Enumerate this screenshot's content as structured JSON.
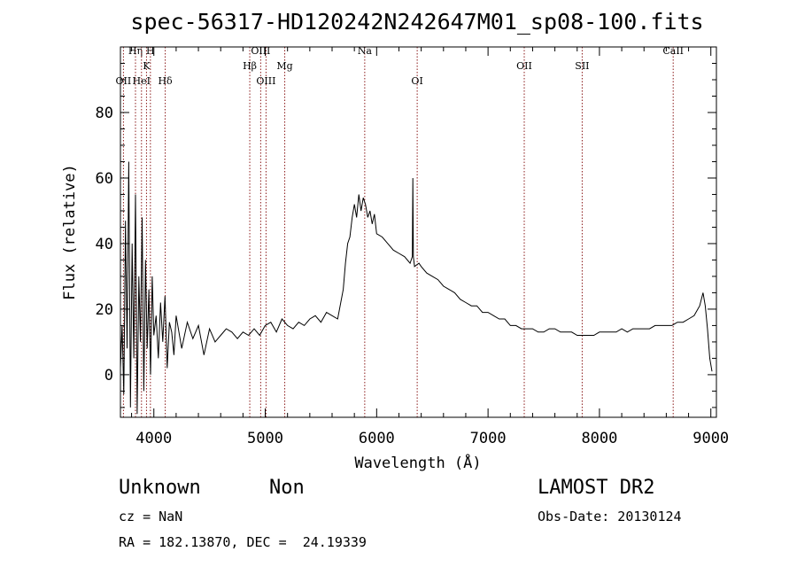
{
  "chart_data": {
    "type": "line",
    "title": "spec-56317-HD120242N242647M01_sp08-100.fits",
    "xlabel": "Wavelength (Å)",
    "ylabel": "Flux (relative)",
    "xlim": [
      3700,
      9050
    ],
    "ylim": [
      -13,
      100
    ],
    "x_ticks": [
      4000,
      5000,
      6000,
      7000,
      8000,
      9000
    ],
    "y_ticks": [
      0,
      20,
      40,
      60,
      80
    ],
    "grid": false,
    "series": [
      {
        "color": "#000000",
        "x": [
          3700,
          3715,
          3730,
          3745,
          3760,
          3775,
          3790,
          3805,
          3820,
          3835,
          3850,
          3865,
          3880,
          3895,
          3910,
          3925,
          3940,
          3955,
          3970,
          3985,
          4000,
          4020,
          4040,
          4060,
          4080,
          4100,
          4120,
          4140,
          4160,
          4180,
          4200,
          4250,
          4300,
          4350,
          4400,
          4450,
          4500,
          4550,
          4600,
          4650,
          4700,
          4750,
          4800,
          4850,
          4900,
          4950,
          5000,
          5050,
          5100,
          5150,
          5200,
          5250,
          5300,
          5350,
          5400,
          5450,
          5500,
          5550,
          5600,
          5650,
          5700,
          5720,
          5740,
          5760,
          5780,
          5800,
          5820,
          5840,
          5860,
          5880,
          5900,
          5920,
          5940,
          5960,
          5980,
          6000,
          6050,
          6100,
          6150,
          6200,
          6250,
          6300,
          6320,
          6325,
          6330,
          6340,
          6380,
          6400,
          6450,
          6500,
          6550,
          6600,
          6650,
          6700,
          6750,
          6800,
          6850,
          6900,
          6950,
          7000,
          7050,
          7100,
          7150,
          7200,
          7250,
          7300,
          7350,
          7400,
          7450,
          7500,
          7550,
          7600,
          7650,
          7700,
          7750,
          7800,
          7850,
          7900,
          7950,
          8000,
          8050,
          8100,
          8150,
          8200,
          8250,
          8300,
          8350,
          8400,
          8450,
          8500,
          8550,
          8600,
          8650,
          8700,
          8750,
          8800,
          8850,
          8900,
          8930,
          8950,
          8970,
          8990,
          9010
        ],
        "y": [
          2,
          15,
          -6,
          47,
          8,
          65,
          -10,
          40,
          5,
          55,
          -12,
          30,
          10,
          48,
          -5,
          35,
          8,
          26,
          0,
          30,
          12,
          18,
          5,
          22,
          10,
          24,
          2,
          16,
          13,
          6,
          18,
          8,
          16,
          11,
          15,
          6,
          14,
          10,
          12,
          14,
          13,
          11,
          13,
          12,
          14,
          12,
          15,
          16,
          13,
          17,
          15,
          14,
          16,
          15,
          17,
          18,
          16,
          19,
          18,
          17,
          26,
          34,
          40,
          42,
          48,
          52,
          48,
          55,
          50,
          54,
          52,
          48,
          50,
          46,
          49,
          43,
          42,
          40,
          38,
          37,
          36,
          34,
          36,
          60,
          36,
          33,
          34,
          33,
          31,
          30,
          29,
          27,
          26,
          25,
          23,
          22,
          21,
          21,
          19,
          19,
          18,
          17,
          17,
          15,
          15,
          14,
          14,
          14,
          13,
          13,
          14,
          14,
          13,
          13,
          13,
          12,
          12,
          12,
          12,
          13,
          13,
          13,
          13,
          14,
          13,
          14,
          14,
          14,
          14,
          15,
          15,
          15,
          15,
          16,
          16,
          17,
          18,
          21,
          25,
          21,
          14,
          5,
          1
        ]
      }
    ],
    "line_marks": [
      {
        "label": "OII",
        "x": 3727,
        "row": 3
      },
      {
        "label": "Hη",
        "x": 3835,
        "row": 1
      },
      {
        "label": "HeI",
        "x": 3889,
        "row": 3
      },
      {
        "label": "K",
        "x": 3934,
        "row": 2
      },
      {
        "label": "H",
        "x": 3969,
        "row": 1
      },
      {
        "label": "Hδ",
        "x": 4102,
        "row": 3
      },
      {
        "label": "Hβ",
        "x": 4861,
        "row": 2
      },
      {
        "label": "OIII",
        "x": 4959,
        "row": 1
      },
      {
        "label": "OIII",
        "x": 5007,
        "row": 3
      },
      {
        "label": "Mg",
        "x": 5175,
        "row": 2
      },
      {
        "label": "Na",
        "x": 5893,
        "row": 1
      },
      {
        "label": "OI",
        "x": 6364,
        "row": 3
      },
      {
        "label": "OII",
        "x": 7325,
        "row": 2
      },
      {
        "label": "SII",
        "x": 7845,
        "row": 2
      },
      {
        "label": "CaII",
        "x": 8662,
        "row": 1
      }
    ]
  },
  "info": {
    "class": "Unknown",
    "subclass": "Non",
    "cz": "cz = NaN",
    "radec": "RA = 182.13870, DEC =  24.19339",
    "survey": "LAMOST DR2",
    "obsdate": "Obs-Date: 20130124"
  },
  "colors": {
    "spectrum": "#000000",
    "line_marks": "#8b1a1a"
  }
}
